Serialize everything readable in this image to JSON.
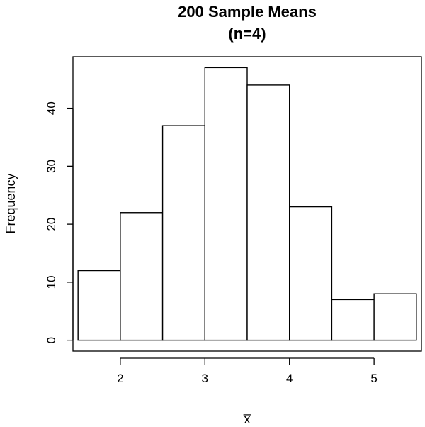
{
  "chart_data": {
    "type": "bar",
    "title": "200 Sample Means",
    "subtitle": "(n=4)",
    "xlabel": "x̅",
    "ylabel": "Frequency",
    "bins": [
      {
        "start": 1.5,
        "end": 2.0,
        "count": 12
      },
      {
        "start": 2.0,
        "end": 2.5,
        "count": 22
      },
      {
        "start": 2.5,
        "end": 3.0,
        "count": 37
      },
      {
        "start": 3.0,
        "end": 3.5,
        "count": 47
      },
      {
        "start": 3.5,
        "end": 4.0,
        "count": 44
      },
      {
        "start": 4.0,
        "end": 4.5,
        "count": 23
      },
      {
        "start": 4.5,
        "end": 5.0,
        "count": 7
      },
      {
        "start": 5.0,
        "end": 5.5,
        "count": 8
      }
    ],
    "xticks": [
      2,
      3,
      4,
      5
    ],
    "yticks": [
      0,
      10,
      20,
      30,
      40
    ],
    "xlim": [
      1.44,
      5.56
    ],
    "ylim": [
      -1.88,
      48.88
    ],
    "grid": false,
    "legend": "none"
  }
}
